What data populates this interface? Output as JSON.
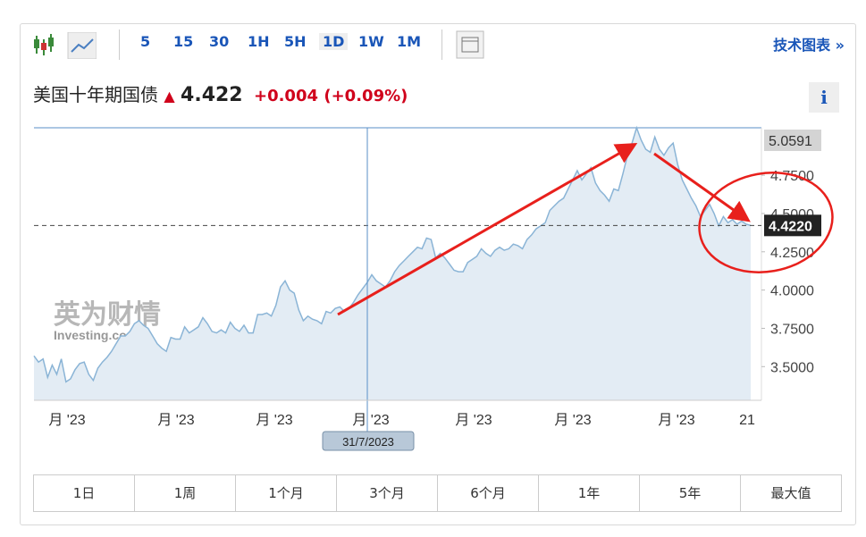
{
  "toolbar": {
    "intervals": [
      "5",
      "15",
      "30",
      "1H",
      "5H",
      "1D",
      "1W",
      "1M"
    ],
    "link": "技术图表 »"
  },
  "header": {
    "name": "美国十年期国债",
    "price": "4.422",
    "change": "+0.004",
    "change_pct": "(+0.09%)",
    "info": "i"
  },
  "chart_data": {
    "type": "line",
    "color": "#8ab4d6",
    "x_labels": [
      "月 '23",
      "月 '23",
      "月 '23",
      "月 '23",
      "月 '23",
      "月 '23",
      "月 '23",
      "21"
    ],
    "values": [
      3.57,
      3.53,
      3.55,
      3.43,
      3.51,
      3.45,
      3.55,
      3.4,
      3.42,
      3.48,
      3.52,
      3.53,
      3.45,
      3.41,
      3.49,
      3.53,
      3.56,
      3.6,
      3.65,
      3.7,
      3.7,
      3.73,
      3.78,
      3.8,
      3.77,
      3.75,
      3.7,
      3.65,
      3.62,
      3.6,
      3.69,
      3.68,
      3.68,
      3.76,
      3.72,
      3.74,
      3.76,
      3.82,
      3.78,
      3.73,
      3.72,
      3.74,
      3.72,
      3.79,
      3.75,
      3.73,
      3.77,
      3.72,
      3.72,
      3.84,
      3.84,
      3.85,
      3.83,
      3.9,
      4.02,
      4.06,
      4.0,
      3.98,
      3.87,
      3.8,
      3.83,
      3.81,
      3.8,
      3.78,
      3.86,
      3.85,
      3.88,
      3.89,
      3.86,
      3.88,
      3.92,
      3.97,
      4.01,
      4.05,
      4.1,
      4.06,
      4.04,
      4.02,
      4.06,
      4.12,
      4.16,
      4.19,
      4.22,
      4.25,
      4.28,
      4.27,
      4.34,
      4.33,
      4.21,
      4.24,
      4.21,
      4.17,
      4.13,
      4.12,
      4.12,
      4.18,
      4.2,
      4.22,
      4.27,
      4.24,
      4.22,
      4.26,
      4.28,
      4.26,
      4.27,
      4.3,
      4.29,
      4.27,
      4.33,
      4.36,
      4.4,
      4.42,
      4.44,
      4.52,
      4.55,
      4.58,
      4.6,
      4.66,
      4.72,
      4.78,
      4.72,
      4.76,
      4.8,
      4.7,
      4.65,
      4.62,
      4.58,
      4.66,
      4.65,
      4.76,
      4.88,
      4.96,
      5.06,
      4.98,
      4.92,
      4.9,
      5.0,
      4.92,
      4.88,
      4.93,
      4.96,
      4.82,
      4.72,
      4.66,
      4.6,
      4.55,
      4.48,
      4.52,
      4.56,
      4.5,
      4.42,
      4.48,
      4.44,
      4.46,
      4.43,
      4.45,
      4.43,
      4.422
    ],
    "ylim": [
      3.28,
      5.06
    ],
    "yticks": [
      {
        "value": 3.5,
        "label": "3.5000"
      },
      {
        "value": 3.75,
        "label": "3.7500"
      },
      {
        "value": 4,
        "label": "4.0000"
      },
      {
        "value": 4.25,
        "label": "4.2500"
      },
      {
        "value": 4.5,
        "label": "4.5000"
      },
      {
        "value": 4.75,
        "label": "4.7500"
      }
    ],
    "high": {
      "value": 5.0591,
      "label": "5.0591"
    },
    "current": {
      "value": 4.422,
      "label": "4.4220"
    },
    "crosshair_label": "31/7/2023",
    "watermark": [
      "英为财情",
      "Investing.com"
    ]
  },
  "ranges": [
    "1日",
    "1周",
    "1个月",
    "3个月",
    "6个月",
    "1年",
    "5年",
    "最大值"
  ]
}
